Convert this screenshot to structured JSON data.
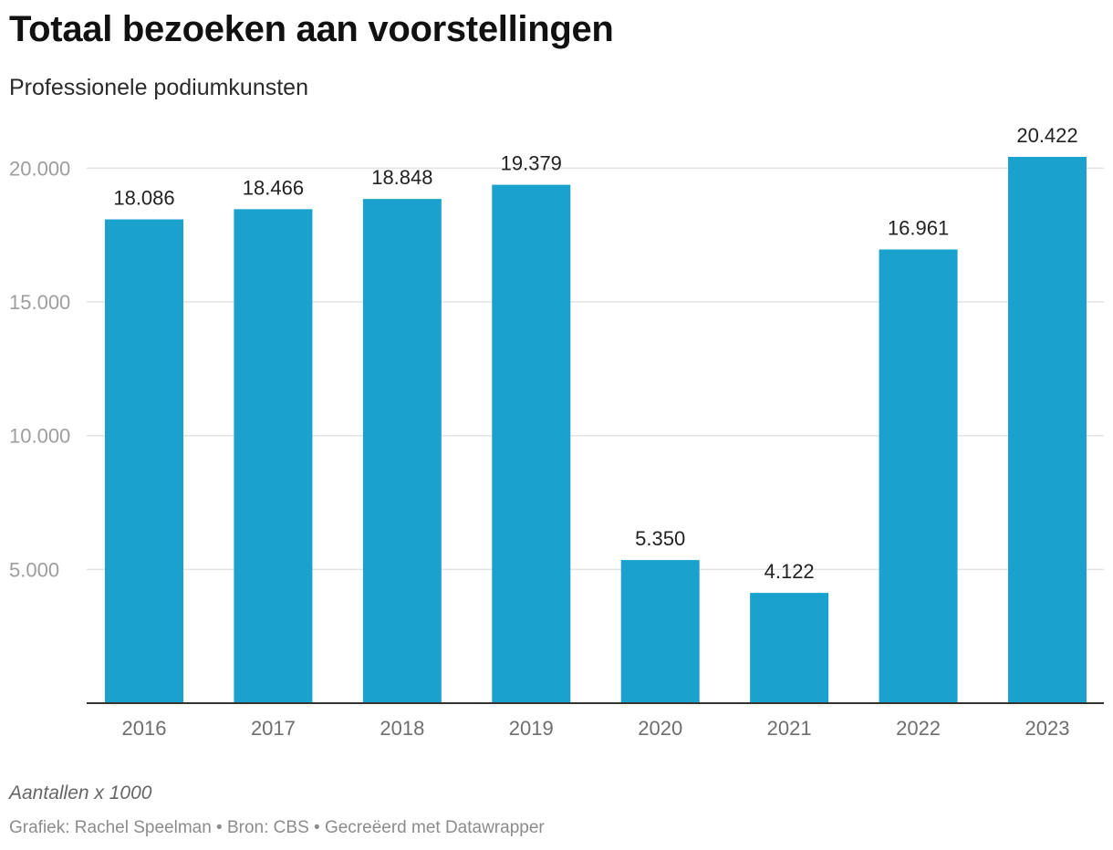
{
  "chart_data": {
    "type": "bar",
    "title": "Totaal bezoeken aan voorstellingen",
    "subtitle": "Professionele podiumkunsten",
    "categories": [
      "2016",
      "2017",
      "2018",
      "2019",
      "2020",
      "2021",
      "2022",
      "2023"
    ],
    "values": [
      18086,
      18466,
      18848,
      19379,
      5350,
      4122,
      16961,
      20422
    ],
    "value_labels": [
      "18.086",
      "18.466",
      "18.848",
      "19.379",
      "5.350",
      "4.122",
      "16.961",
      "20.422"
    ],
    "yticks": [
      5000,
      10000,
      15000,
      20000
    ],
    "ytick_labels": [
      "5.000",
      "10.000",
      "15.000",
      "20.000"
    ],
    "ylim": [
      0,
      20422
    ],
    "xlabel": "",
    "ylabel": "",
    "grid": true,
    "bar_color": "#1aa1cd",
    "note": "Aantallen x 1000",
    "footer": "Grafiek: Rachel Speelman • Bron: CBS • Gecreëerd met Datawrapper"
  }
}
